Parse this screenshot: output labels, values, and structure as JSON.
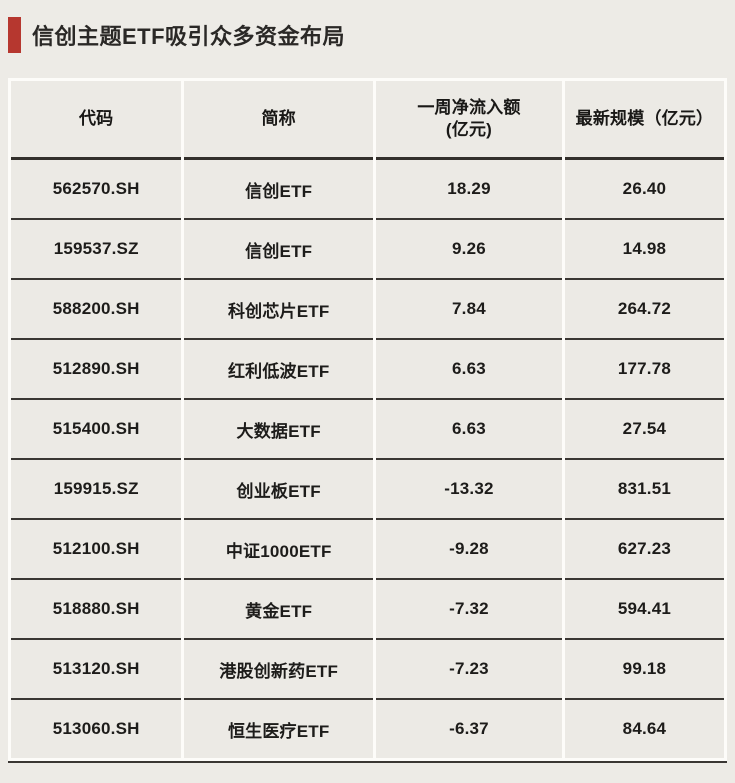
{
  "title": "信创主题ETF吸引众多资金布局",
  "colors": {
    "accent_bar": "#b6372f",
    "page_bg": "#edebe6",
    "cell_bg": "#eceae5",
    "divider_white": "#fdfcf9",
    "rule_dark": "#3a3733"
  },
  "chart_data": {
    "type": "table",
    "title": "信创主题ETF吸引众多资金布局",
    "headers": [
      {
        "label": "代码"
      },
      {
        "label": "简称"
      },
      {
        "label": "一周净流入额",
        "sublabel": "(亿元)"
      },
      {
        "label": "最新规模（亿元）"
      }
    ],
    "rows": [
      {
        "code": "562570.SH",
        "name": "信创ETF",
        "inflow": "18.29",
        "scale": "26.40"
      },
      {
        "code": "159537.SZ",
        "name": "信创ETF",
        "inflow": "9.26",
        "scale": "14.98"
      },
      {
        "code": "588200.SH",
        "name": "科创芯片ETF",
        "inflow": "7.84",
        "scale": "264.72"
      },
      {
        "code": "512890.SH",
        "name": "红利低波ETF",
        "inflow": "6.63",
        "scale": "177.78"
      },
      {
        "code": "515400.SH",
        "name": "大数据ETF",
        "inflow": "6.63",
        "scale": "27.54"
      },
      {
        "code": "159915.SZ",
        "name": "创业板ETF",
        "inflow": "-13.32",
        "scale": "831.51"
      },
      {
        "code": "512100.SH",
        "name": "中证1000ETF",
        "inflow": "-9.28",
        "scale": "627.23"
      },
      {
        "code": "518880.SH",
        "name": "黄金ETF",
        "inflow": "-7.32",
        "scale": "594.41"
      },
      {
        "code": "513120.SH",
        "name": "港股创新药ETF",
        "inflow": "-7.23",
        "scale": "99.18"
      },
      {
        "code": "513060.SH",
        "name": "恒生医疗ETF",
        "inflow": "-6.37",
        "scale": "84.64"
      }
    ]
  }
}
